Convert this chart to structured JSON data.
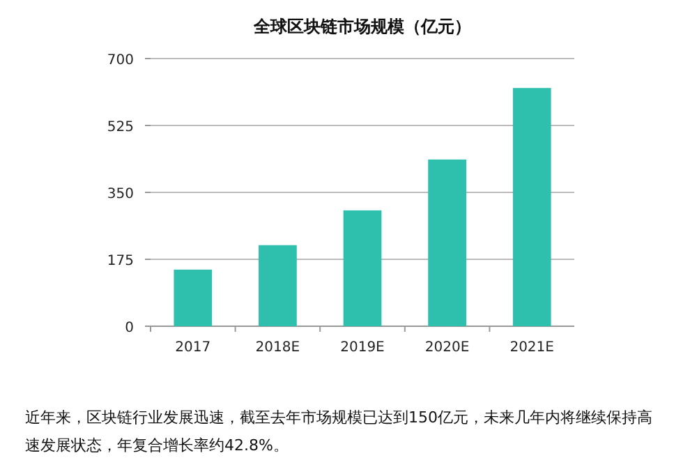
{
  "chart_data": {
    "type": "bar",
    "title": "全球区块链市场规模（亿元）",
    "categories": [
      "2017",
      "2018E",
      "2019E",
      "2020E",
      "2021E"
    ],
    "values": [
      148,
      212,
      303,
      436,
      623
    ],
    "color": "#2ebfad",
    "ylim": [
      0,
      700
    ],
    "yticks": [
      0,
      175,
      350,
      525,
      700
    ],
    "grid": "y",
    "annotations": [
      "近年来，区块链行业发展迅速，截至去年市场规模已达到150亿元，未来几年内将继续保持高速发展状态，年复合增长率约42.8%。"
    ]
  }
}
